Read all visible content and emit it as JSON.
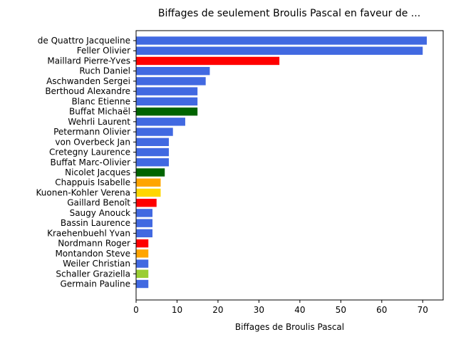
{
  "chart_data": {
    "type": "bar",
    "orientation": "horizontal",
    "title": "Biffages de seulement Broulis Pascal en faveur de ...",
    "xlabel": "Biffages de Broulis Pascal",
    "ylabel": "",
    "xlim": [
      0,
      75
    ],
    "xticks": [
      0,
      10,
      20,
      30,
      40,
      50,
      60,
      70
    ],
    "grid": false,
    "categories": [
      "de Quattro Jacqueline",
      "Feller Olivier",
      "Maillard Pierre-Yves",
      "Ruch Daniel",
      "Aschwanden Sergei",
      "Berthoud Alexandre",
      "Blanc Etienne",
      "Buffat Michaël",
      "Wehrli Laurent",
      "Petermann Olivier",
      "von Overbeck Jan",
      "Cretegny Laurence",
      "Buffat Marc-Olivier",
      "Nicolet Jacques",
      "Chappuis Isabelle",
      "Kuonen-Kohler Verena",
      "Gaillard Benoît",
      "Saugy Anouck",
      "Bassin Laurence",
      "Kraehenbuehl Yvan",
      "Nordmann Roger",
      "Montandon Steve",
      "Weiler Christian",
      "Schaller Graziella",
      "Germain Pauline"
    ],
    "values": [
      71,
      70,
      35,
      18,
      17,
      15,
      15,
      15,
      12,
      9,
      8,
      8,
      8,
      7,
      6,
      6,
      5,
      4,
      4,
      4,
      3,
      3,
      3,
      3,
      3
    ],
    "colors": [
      "#4169e1",
      "#4169e1",
      "#ff0000",
      "#4169e1",
      "#4169e1",
      "#4169e1",
      "#4169e1",
      "#006400",
      "#4169e1",
      "#4169e1",
      "#4169e1",
      "#4169e1",
      "#4169e1",
      "#006400",
      "#ffa500",
      "#ffd700",
      "#ff0000",
      "#4169e1",
      "#4169e1",
      "#4169e1",
      "#ff0000",
      "#ffa500",
      "#4169e1",
      "#9acd32",
      "#4169e1"
    ]
  }
}
